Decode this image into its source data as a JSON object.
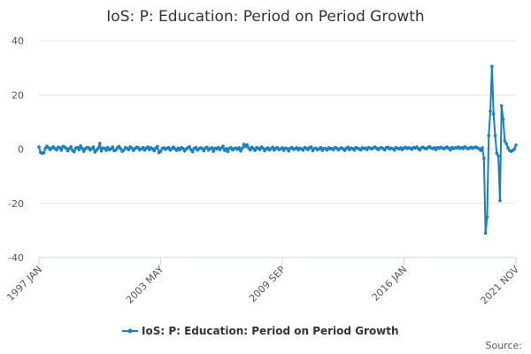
{
  "chart_data": {
    "type": "line",
    "title": "IoS: P: Education: Period on Period Growth",
    "categories": [
      "1997 JAN",
      null,
      null,
      null,
      null,
      null,
      null,
      null,
      null,
      null,
      null,
      null,
      null,
      null,
      null,
      null,
      null,
      null,
      null,
      null,
      null,
      null,
      null,
      null,
      null,
      null,
      null,
      null,
      null,
      null,
      null,
      null,
      null,
      null,
      null,
      null,
      null,
      null,
      null,
      null,
      null,
      null,
      null,
      null,
      null,
      null,
      null,
      null,
      null,
      null,
      null,
      null,
      null,
      null,
      null,
      null,
      null,
      null,
      null,
      null,
      null,
      null,
      null,
      null,
      null,
      null,
      null,
      null,
      null,
      null,
      null,
      null,
      null,
      null,
      null,
      null,
      "2003 MAY",
      null,
      null,
      null,
      null,
      null,
      null,
      null,
      null,
      null,
      null,
      null,
      null,
      null,
      null,
      null,
      null,
      null,
      null,
      null,
      null,
      null,
      null,
      null,
      null,
      null,
      null,
      null,
      null,
      null,
      null,
      null,
      null,
      null,
      null,
      null,
      null,
      null,
      null,
      null,
      null,
      null,
      null,
      null,
      null,
      null,
      null,
      null,
      null,
      null,
      null,
      null,
      null,
      null,
      null,
      null,
      null,
      null,
      null,
      null,
      null,
      null,
      null,
      null,
      null,
      null,
      null,
      null,
      null,
      null,
      null,
      null,
      null,
      null,
      null,
      null,
      "2009 SEP",
      null,
      null,
      null,
      null,
      null,
      null,
      null,
      null,
      null,
      null,
      null,
      null,
      null,
      null,
      null,
      null,
      null,
      null,
      null,
      null,
      null,
      null,
      null,
      null,
      null,
      null,
      null,
      null,
      null,
      null,
      null,
      null,
      null,
      null,
      null,
      null,
      null,
      null,
      null,
      null,
      null,
      null,
      null,
      null,
      null,
      null,
      null,
      null,
      null,
      null,
      null,
      null,
      null,
      null,
      null,
      null,
      null,
      null,
      null,
      null,
      null,
      null,
      null,
      null,
      null,
      null,
      null,
      null,
      null,
      null,
      null,
      null,
      null,
      null,
      null,
      "2016 JAN",
      null,
      null,
      null,
      null,
      null,
      null,
      null,
      null,
      null,
      null,
      null,
      null,
      null,
      null,
      null,
      null,
      null,
      null,
      null,
      null,
      null,
      null,
      null,
      null,
      null,
      null,
      null,
      null,
      null,
      null,
      null,
      null,
      null,
      null,
      null,
      null,
      null,
      null,
      null,
      null,
      null,
      null,
      null,
      null,
      null,
      null,
      null,
      null,
      null,
      null,
      null,
      null,
      null,
      null,
      null,
      null,
      null,
      null,
      null,
      null,
      null,
      null,
      null,
      null,
      null,
      null,
      null,
      null,
      null,
      "2021 NOV"
    ],
    "series": [
      {
        "name": "IoS: P: Education: Period on Period Growth",
        "color": "#1a7fc1",
        "values": [
          0.8,
          -1.2,
          -1.5,
          -1.4,
          0.3,
          1.1,
          0.6,
          -0.2,
          0.4,
          0.9,
          0.2,
          -0.3,
          0.7,
          0.5,
          -0.4,
          1.0,
          0.8,
          0.3,
          -0.6,
          0.2,
          0.9,
          -0.5,
          -1.0,
          0.4,
          0.6,
          -0.2,
          1.2,
          0.3,
          -0.8,
          0.1,
          0.6,
          0.5,
          -0.3,
          0.2,
          0.8,
          -1.1,
          -0.4,
          0.3,
          2.1,
          -0.7,
          0.4,
          0.3,
          -0.5,
          0.6,
          -0.2,
          0.1,
          0.8,
          -0.6,
          -0.3,
          0.5,
          1.0,
          0.2,
          -0.8,
          -0.4,
          0.6,
          0.3,
          -0.2,
          0.9,
          0.4,
          -0.5,
          0.2,
          0.7,
          0.5,
          -0.3,
          0.1,
          0.6,
          -0.4,
          0.3,
          0.8,
          -0.2,
          0.5,
          0.1,
          -0.6,
          0.4,
          1.0,
          -1.3,
          -0.8,
          0.2,
          0.5,
          -0.1,
          0.3,
          0.6,
          -0.4,
          0.2,
          0.8,
          0.1,
          -0.5,
          0.4,
          -0.3,
          0.6,
          0.2,
          -0.7,
          0.1,
          0.5,
          0.9,
          -0.2,
          -1.0,
          0.3,
          0.6,
          -0.4,
          0.1,
          0.5,
          0.2,
          -0.6,
          0.4,
          0.7,
          -0.3,
          0.2,
          0.5,
          -0.8,
          0.3,
          0.1,
          0.6,
          -0.2,
          0.4,
          1.1,
          -0.5,
          0.2,
          -0.9,
          0.3,
          0.6,
          -0.3,
          0.2,
          0.4,
          -0.1,
          0.5,
          -0.7,
          0.3,
          1.8,
          0.9,
          1.6,
          0.4,
          -0.3,
          0.7,
          0.2,
          -0.5,
          0.6,
          0.3,
          -0.2,
          0.8,
          0.4,
          -0.6,
          0.1,
          0.5,
          -0.3,
          0.2,
          0.7,
          -0.4,
          0.3,
          0.6,
          -0.2,
          0.1,
          0.5,
          -0.5,
          0.4,
          0.2,
          -0.7,
          0.3,
          0.6,
          -0.1,
          0.2,
          0.5,
          -0.3,
          0.4,
          0.1,
          -0.4,
          0.6,
          0.3,
          -0.2,
          0.5,
          0.8,
          -0.6,
          0.2,
          0.4,
          -0.3,
          0.1,
          0.6,
          -0.5,
          0.3,
          0.2,
          -0.4,
          0.5,
          0.1,
          0.3,
          -0.2,
          0.6,
          0.4,
          -0.3,
          0.2,
          0.5,
          0.1,
          -0.5,
          0.3,
          0.7,
          -0.2,
          0.4,
          0.2,
          -0.4,
          0.6,
          0.3,
          0.1,
          -0.3,
          0.5,
          0.2,
          0.4,
          -0.2,
          0.6,
          0.3,
          0.1,
          0.5,
          0.8,
          0.3,
          -0.2,
          0.4,
          0.6,
          0.2,
          -0.3,
          0.5,
          0.7,
          0.1,
          0.4,
          0.2,
          -0.4,
          0.6,
          0.3,
          0.1,
          0.5,
          -0.2,
          0.4,
          0.7,
          0.2,
          0.5,
          0.3,
          -0.1,
          0.6,
          0.4,
          0.8,
          0.2,
          -0.3,
          0.5,
          0.7,
          0.3,
          0.1,
          0.6,
          0.9,
          0.4,
          0.2,
          0.5,
          -0.2,
          0.6,
          0.3,
          0.7,
          0.4,
          0.1,
          0.5,
          0.8,
          0.3,
          -0.3,
          0.6,
          0.2,
          0.5,
          0.4,
          0.8,
          0.3,
          0.6,
          0.2,
          0.9,
          0.5,
          0.1,
          0.4,
          0.7,
          0.3,
          0.6,
          0.8,
          0.4,
          0.2,
          -0.5,
          0.5,
          -3.5,
          -31,
          -25,
          5,
          14,
          30.5,
          13,
          5,
          -1.5,
          -2.5,
          -19,
          16,
          11,
          3,
          2,
          0.5,
          -0.5,
          -0.8,
          -0.5,
          0,
          1.5
        ]
      }
    ],
    "ylim": [
      -40,
      40
    ],
    "yticks": [
      -40,
      -20,
      0,
      20,
      40
    ],
    "grid": true,
    "legend": "bottom",
    "source": "Source:"
  }
}
